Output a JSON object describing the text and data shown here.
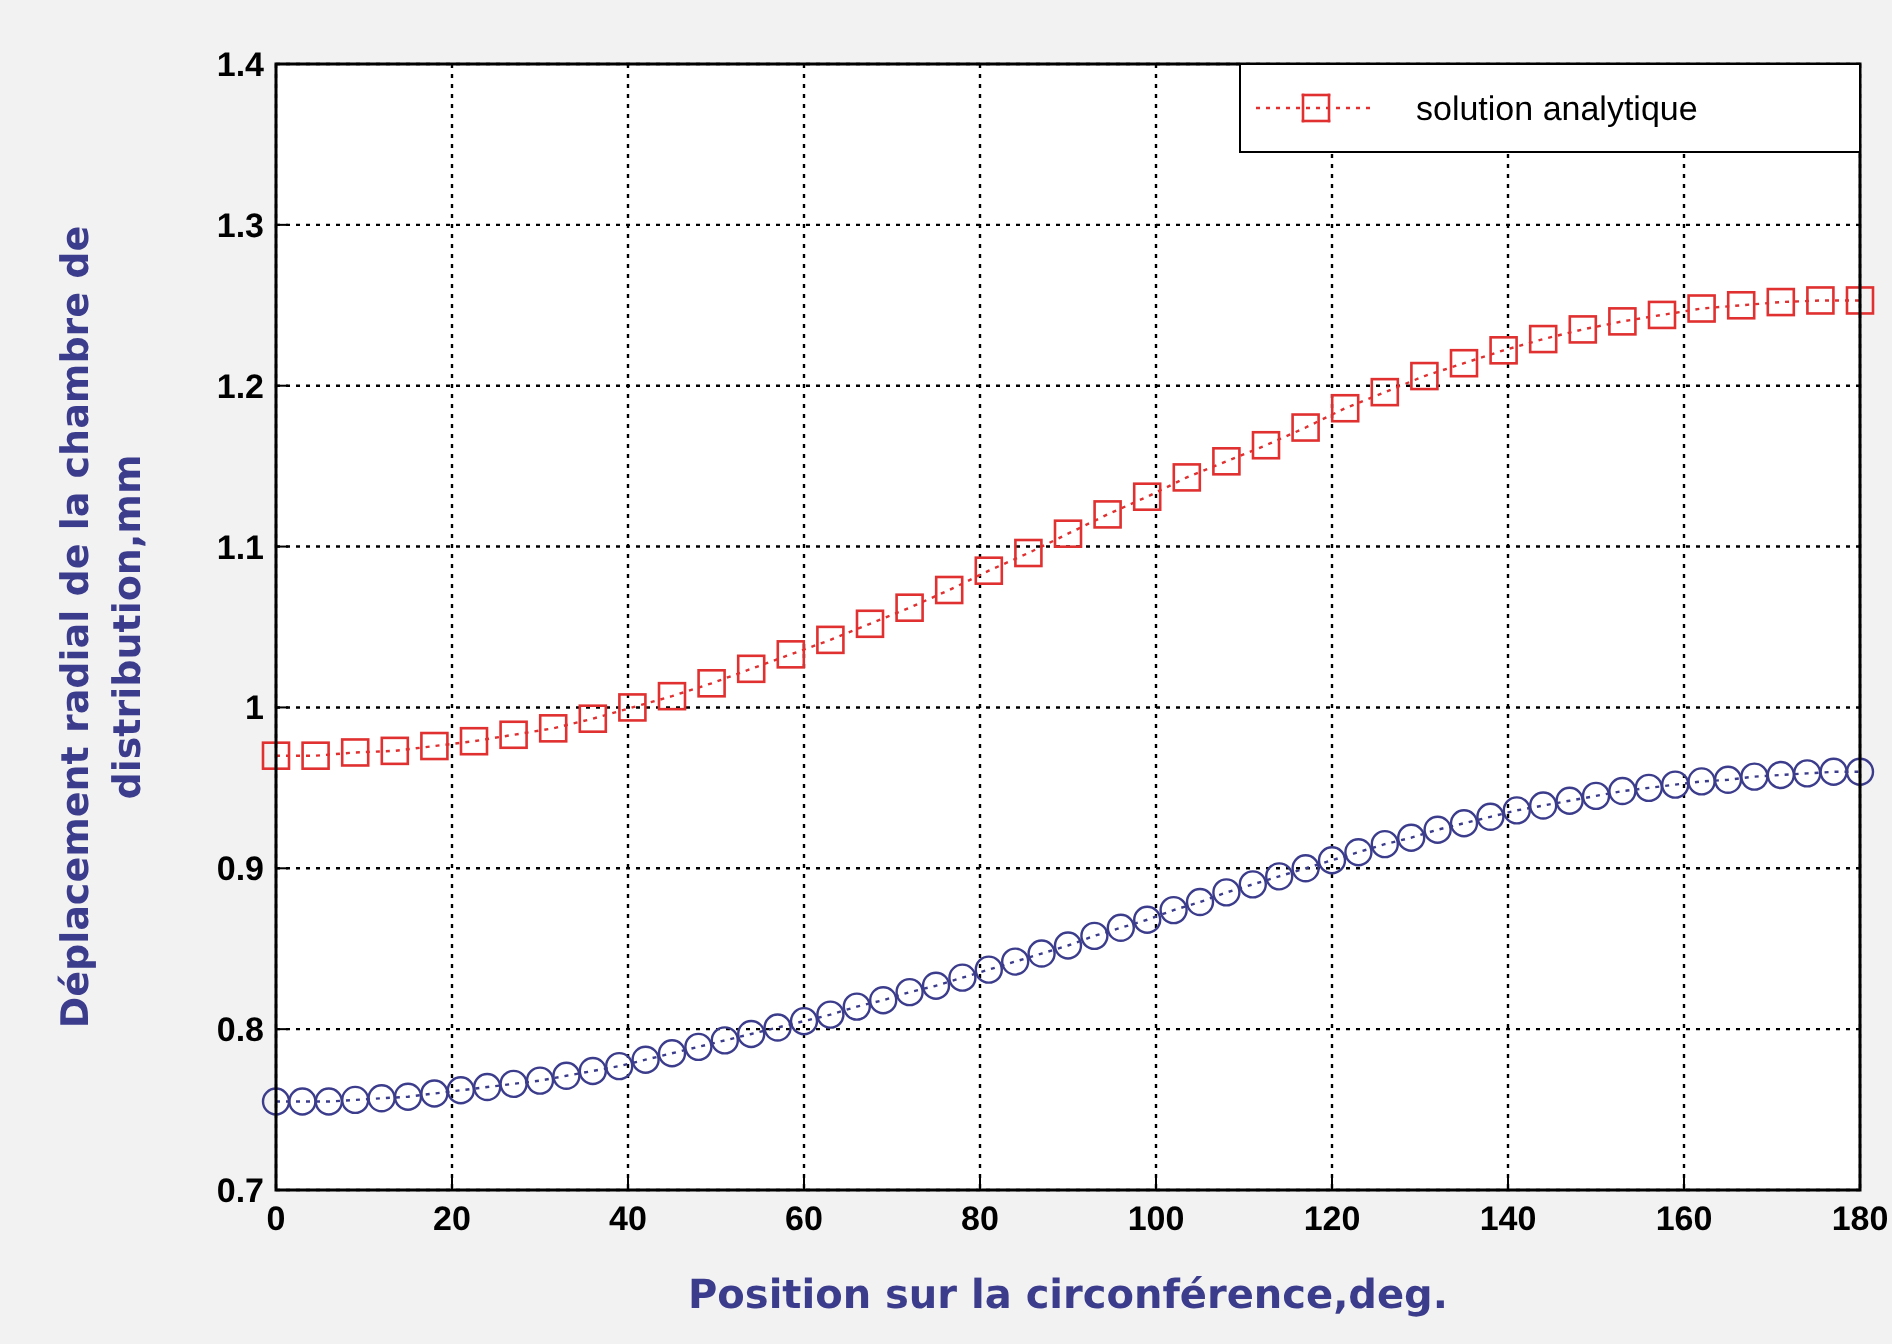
{
  "chart_data": {
    "type": "line",
    "xlabel": "Position sur la circonférence,deg.",
    "ylabel": "Déplacement radial de la chambre de distribution,mm",
    "xlim": [
      0,
      180
    ],
    "xticks": [
      0,
      20,
      40,
      60,
      80,
      100,
      120,
      140,
      160,
      180
    ],
    "ylim": [
      0.7,
      1.4
    ],
    "yticks": [
      0.7,
      0.8,
      0.9,
      1,
      1.1,
      1.2,
      1.3,
      1.4
    ],
    "grid": true,
    "legend": "top right",
    "line_style": "dotted",
    "series": [
      {
        "color": "#3c3c8c",
        "marker": "circle",
        "x": [
          0,
          3,
          6,
          9,
          12,
          15,
          18,
          21,
          24,
          27,
          30,
          33,
          36,
          39,
          42,
          45,
          48,
          51,
          54,
          57,
          60,
          63,
          66,
          69,
          72,
          75,
          78,
          81,
          84,
          87,
          90,
          93,
          96,
          99,
          102,
          105,
          108,
          111,
          114,
          117,
          120,
          123,
          126,
          129,
          132,
          135,
          138,
          141,
          144,
          147,
          150,
          153,
          156,
          159,
          162,
          165,
          168,
          171,
          174,
          177,
          180
        ],
        "values": [
          0.755,
          0.755,
          0.755,
          0.756,
          0.757,
          0.758,
          0.76,
          0.762,
          0.764,
          0.766,
          0.768,
          0.771,
          0.774,
          0.777,
          0.781,
          0.785,
          0.789,
          0.793,
          0.797,
          0.801,
          0.805,
          0.809,
          0.814,
          0.818,
          0.823,
          0.827,
          0.832,
          0.837,
          0.842,
          0.847,
          0.852,
          0.858,
          0.863,
          0.868,
          0.874,
          0.879,
          0.885,
          0.89,
          0.895,
          0.9,
          0.905,
          0.91,
          0.915,
          0.919,
          0.924,
          0.928,
          0.932,
          0.936,
          0.939,
          0.942,
          0.945,
          0.948,
          0.95,
          0.952,
          0.954,
          0.955,
          0.957,
          0.958,
          0.959,
          0.96,
          0.96
        ]
      },
      {
        "name": "solution analytique",
        "color": "#e03030",
        "marker": "square",
        "x": [
          0,
          4.5,
          9,
          13.5,
          18,
          22.5,
          27,
          31.5,
          36,
          40.5,
          45,
          49.5,
          54,
          58.5,
          63,
          67.5,
          72,
          76.5,
          81,
          85.5,
          90,
          94.5,
          99,
          103.5,
          108,
          112.5,
          117,
          121.5,
          126,
          130.5,
          135,
          139.5,
          144,
          148.5,
          153,
          157.5,
          162,
          166.5,
          171,
          175.5,
          180
        ],
        "values": [
          0.97,
          0.97,
          0.972,
          0.973,
          0.976,
          0.979,
          0.983,
          0.987,
          0.993,
          1,
          1.007,
          1.015,
          1.024,
          1.033,
          1.042,
          1.052,
          1.062,
          1.073,
          1.085,
          1.096,
          1.108,
          1.12,
          1.131,
          1.143,
          1.153,
          1.163,
          1.174,
          1.186,
          1.196,
          1.206,
          1.214,
          1.222,
          1.229,
          1.235,
          1.24,
          1.244,
          1.248,
          1.25,
          1.252,
          1.253,
          1.253
        ]
      }
    ]
  }
}
